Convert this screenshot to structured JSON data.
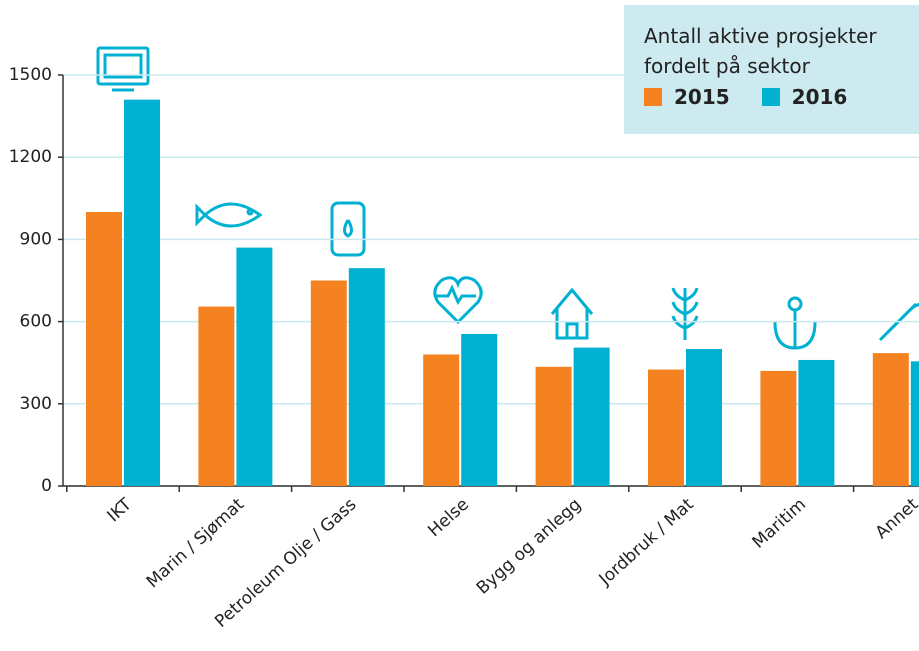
{
  "chart_data": {
    "type": "bar",
    "title": "Antall aktive prosjekter fordelt på sektor",
    "categories": [
      "IKT",
      "Marin / Sjømat",
      "Petroleum Olje / Gass",
      "Helse",
      "Bygg og anlegg",
      "Jordbruk / Mat",
      "Maritim",
      "Annet"
    ],
    "series": [
      {
        "name": "2015",
        "color": "#f58220",
        "values": [
          1000,
          655,
          750,
          480,
          435,
          425,
          420,
          485
        ]
      },
      {
        "name": "2016",
        "color": "#00b1d2",
        "values": [
          1410,
          870,
          795,
          555,
          505,
          500,
          460,
          455
        ]
      }
    ],
    "ylim": [
      0,
      1500
    ],
    "yticks": [
      0,
      300,
      600,
      900,
      1200,
      1500
    ],
    "grid": true
  }
}
